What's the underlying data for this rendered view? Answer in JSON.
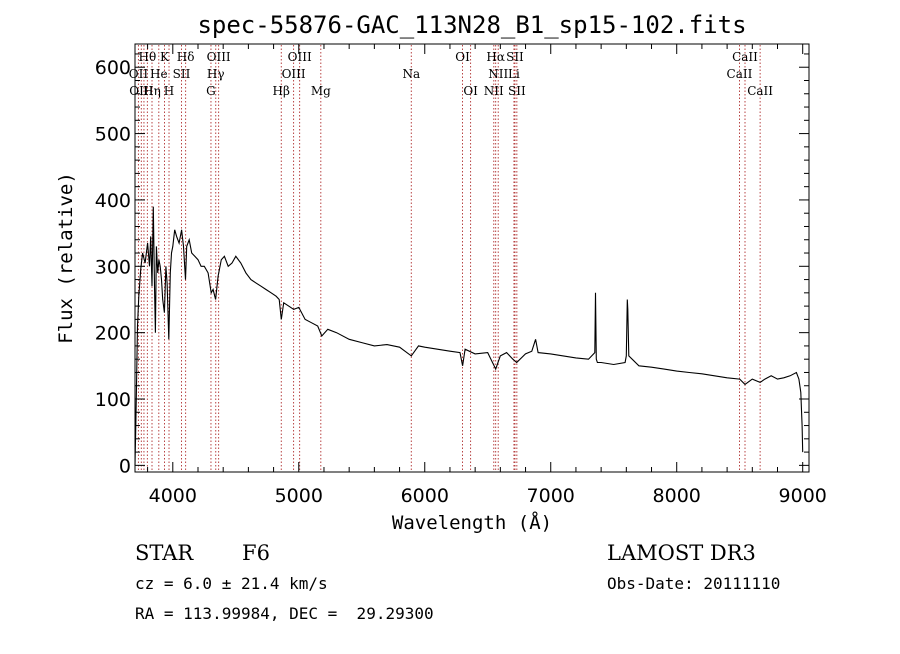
{
  "chart_data": {
    "type": "line",
    "title": "spec-55876-GAC_113N28_B1_sp15-102.fits",
    "xlabel": "Wavelength (Å)",
    "ylabel": "Flux (relative)",
    "xlim": [
      3700,
      9050
    ],
    "ylim": [
      -10,
      635
    ],
    "x_ticks": [
      4000,
      5000,
      6000,
      7000,
      8000,
      9000
    ],
    "y_ticks": [
      0,
      100,
      200,
      300,
      400,
      500,
      600
    ],
    "x_tick_labels": [
      "4000",
      "5000",
      "6000",
      "7000",
      "8000",
      "9000"
    ],
    "y_tick_labels": [
      "0",
      "100",
      "200",
      "300",
      "400",
      "500",
      "600"
    ],
    "series": [
      {
        "name": "flux",
        "x": [
          3700,
          3706,
          3712,
          3720,
          3730,
          3745,
          3760,
          3780,
          3800,
          3815,
          3825,
          3835,
          3845,
          3855,
          3862,
          3870,
          3880,
          3890,
          3900,
          3910,
          3920,
          3933,
          3945,
          3955,
          3968,
          3980,
          3990,
          4000,
          4015,
          4030,
          4050,
          4070,
          4085,
          4101,
          4110,
          4130,
          4150,
          4175,
          4200,
          4225,
          4250,
          4280,
          4305,
          4320,
          4340,
          4360,
          4385,
          4410,
          4440,
          4470,
          4500,
          4540,
          4580,
          4620,
          4660,
          4700,
          4740,
          4780,
          4820,
          4845,
          4861,
          4880,
          4920,
          4960,
          5000,
          5050,
          5100,
          5150,
          5183,
          5230,
          5300,
          5400,
          5500,
          5600,
          5700,
          5800,
          5893,
          5950,
          6000,
          6100,
          6200,
          6280,
          6300,
          6320,
          6400,
          6500,
          6563,
          6600,
          6650,
          6700,
          6730,
          6800,
          6850,
          6880,
          6900,
          7000,
          7100,
          7200,
          7300,
          7350,
          7355,
          7362,
          7370,
          7400,
          7500,
          7590,
          7600,
          7608,
          7612,
          7620,
          7700,
          7800,
          7900,
          8000,
          8100,
          8200,
          8300,
          8400,
          8500,
          8542,
          8600,
          8662,
          8700,
          8750,
          8800,
          8850,
          8900,
          8950,
          8970,
          8985,
          8995,
          9000
        ],
        "y": [
          0,
          60,
          120,
          210,
          255,
          295,
          320,
          305,
          335,
          300,
          345,
          270,
          390,
          270,
          200,
          330,
          290,
          310,
          300,
          280,
          250,
          230,
          300,
          275,
          190,
          290,
          320,
          330,
          355,
          345,
          335,
          355,
          330,
          280,
          330,
          340,
          320,
          315,
          310,
          300,
          300,
          290,
          260,
          265,
          250,
          285,
          310,
          315,
          300,
          305,
          315,
          305,
          290,
          280,
          275,
          270,
          265,
          260,
          255,
          250,
          220,
          245,
          240,
          235,
          238,
          220,
          215,
          210,
          195,
          205,
          200,
          190,
          185,
          180,
          182,
          178,
          165,
          180,
          178,
          175,
          172,
          170,
          150,
          175,
          168,
          170,
          145,
          165,
          170,
          160,
          155,
          168,
          172,
          190,
          170,
          168,
          165,
          162,
          160,
          170,
          260,
          160,
          155,
          155,
          152,
          155,
          165,
          250,
          235,
          165,
          150,
          148,
          145,
          142,
          140,
          138,
          135,
          132,
          130,
          122,
          130,
          125,
          130,
          135,
          130,
          132,
          135,
          140,
          130,
          110,
          60,
          20
        ]
      }
    ],
    "reference_lines": [
      3727,
      3750,
      3771,
      3798,
      3835,
      3889,
      3934,
      3970,
      4069,
      4102,
      4303,
      4341,
      4364,
      4861,
      4959,
      5007,
      5175,
      5893,
      6300,
      6364,
      6548,
      6563,
      6583,
      6708,
      6716,
      6731,
      8498,
      8542,
      8662
    ],
    "line_labels": [
      {
        "text": "Hθ",
        "wave": 3798,
        "row": 1
      },
      {
        "text": "K",
        "wave": 3934,
        "row": 1
      },
      {
        "text": "Hδ",
        "wave": 4102,
        "row": 1
      },
      {
        "text": "OIII",
        "wave": 4364,
        "row": 1
      },
      {
        "text": "OIII",
        "wave": 5007,
        "row": 1
      },
      {
        "text": "OI",
        "wave": 6300,
        "row": 1
      },
      {
        "text": "Hα",
        "wave": 6563,
        "row": 1
      },
      {
        "text": "SII",
        "wave": 6716,
        "row": 1
      },
      {
        "text": "CaII",
        "wave": 8542,
        "row": 1
      },
      {
        "text": "OII",
        "wave": 3727,
        "row": 2
      },
      {
        "text": "He",
        "wave": 3889,
        "row": 2
      },
      {
        "text": "SII",
        "wave": 4069,
        "row": 2
      },
      {
        "text": "Hγ",
        "wave": 4341,
        "row": 2
      },
      {
        "text": "OIII",
        "wave": 4959,
        "row": 2
      },
      {
        "text": "Na",
        "wave": 5893,
        "row": 2
      },
      {
        "text": "NII",
        "wave": 6583,
        "row": 2
      },
      {
        "text": "Li",
        "wave": 6708,
        "row": 2
      },
      {
        "text": "CaII",
        "wave": 8498,
        "row": 2
      },
      {
        "text": "OIII",
        "wave": 3750,
        "row": 3
      },
      {
        "text": "Hη",
        "wave": 3835,
        "row": 3
      },
      {
        "text": "H",
        "wave": 3970,
        "row": 3
      },
      {
        "text": "G",
        "wave": 4303,
        "row": 3
      },
      {
        "text": "Hβ",
        "wave": 4861,
        "row": 3
      },
      {
        "text": "Mg",
        "wave": 5175,
        "row": 3
      },
      {
        "text": "OI",
        "wave": 6364,
        "row": 3
      },
      {
        "text": "NII",
        "wave": 6548,
        "row": 3
      },
      {
        "text": "SII",
        "wave": 6731,
        "row": 3
      },
      {
        "text": "CaII",
        "wave": 8662,
        "row": 3
      }
    ],
    "colors": {
      "data": "#000000",
      "reference": "#b03030",
      "axes": "#000000"
    }
  },
  "info": {
    "class": "STAR",
    "subclass": "F6",
    "survey": "LAMOST DR3",
    "cz": "cz = 6.0 ± 21.4 km/s",
    "obs_date": "Obs-Date: 20111110",
    "coords": "RA = 113.99984, DEC =  29.29300"
  }
}
